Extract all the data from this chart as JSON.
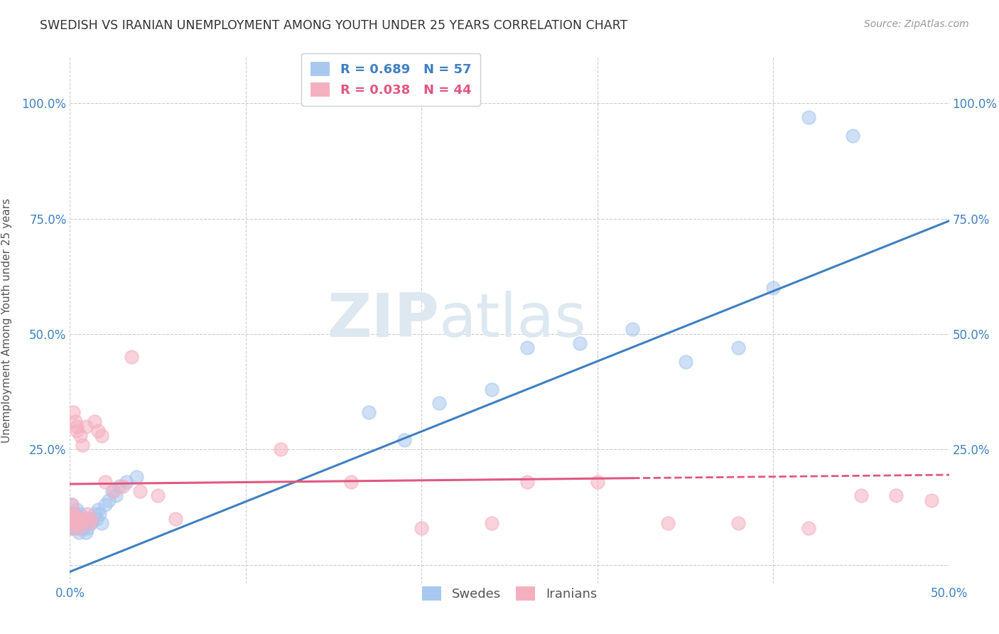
{
  "title": "SWEDISH VS IRANIAN UNEMPLOYMENT AMONG YOUTH UNDER 25 YEARS CORRELATION CHART",
  "source": "Source: ZipAtlas.com",
  "ylabel": "Unemployment Among Youth under 25 years",
  "xlim": [
    0.0,
    0.5
  ],
  "ylim": [
    -0.04,
    1.1
  ],
  "blue_R": 0.689,
  "blue_N": 57,
  "pink_R": 0.038,
  "pink_N": 44,
  "blue_label": "Swedes",
  "pink_label": "Iranians",
  "blue_color": "#a8c8f0",
  "blue_line_color": "#4080c0",
  "pink_color": "#f5b0c0",
  "pink_line_color": "#e05880",
  "background_color": "#ffffff",
  "grid_color": "#cccccc",
  "watermark_color": "#dde8f0",
  "blue_slope": 1.52,
  "blue_intercept": -0.015,
  "pink_slope": 0.04,
  "pink_intercept": 0.175,
  "swedes_x": [
    0.001,
    0.001,
    0.001,
    0.001,
    0.002,
    0.002,
    0.002,
    0.002,
    0.003,
    0.003,
    0.003,
    0.003,
    0.004,
    0.004,
    0.004,
    0.005,
    0.005,
    0.005,
    0.005,
    0.006,
    0.006,
    0.006,
    0.007,
    0.007,
    0.008,
    0.008,
    0.009,
    0.009,
    0.01,
    0.01,
    0.011,
    0.012,
    0.013,
    0.014,
    0.015,
    0.016,
    0.017,
    0.018,
    0.02,
    0.022,
    0.024,
    0.026,
    0.028,
    0.032,
    0.038,
    0.17,
    0.19,
    0.21,
    0.24,
    0.26,
    0.29,
    0.32,
    0.35,
    0.38,
    0.4,
    0.42,
    0.445
  ],
  "swedes_y": [
    0.13,
    0.11,
    0.09,
    0.08,
    0.1,
    0.09,
    0.11,
    0.08,
    0.09,
    0.1,
    0.08,
    0.11,
    0.09,
    0.1,
    0.12,
    0.08,
    0.09,
    0.07,
    0.1,
    0.08,
    0.09,
    0.11,
    0.08,
    0.09,
    0.1,
    0.08,
    0.09,
    0.07,
    0.08,
    0.09,
    0.1,
    0.09,
    0.1,
    0.11,
    0.1,
    0.12,
    0.11,
    0.09,
    0.13,
    0.14,
    0.16,
    0.15,
    0.17,
    0.18,
    0.19,
    0.33,
    0.27,
    0.35,
    0.38,
    0.47,
    0.48,
    0.51,
    0.44,
    0.47,
    0.6,
    0.97,
    0.93
  ],
  "iranians_x": [
    0.001,
    0.001,
    0.001,
    0.001,
    0.002,
    0.002,
    0.002,
    0.003,
    0.003,
    0.003,
    0.004,
    0.004,
    0.005,
    0.005,
    0.006,
    0.006,
    0.007,
    0.008,
    0.009,
    0.01,
    0.011,
    0.012,
    0.014,
    0.016,
    0.018,
    0.02,
    0.025,
    0.03,
    0.035,
    0.04,
    0.05,
    0.06,
    0.12,
    0.16,
    0.2,
    0.24,
    0.26,
    0.3,
    0.34,
    0.38,
    0.42,
    0.45,
    0.47,
    0.49
  ],
  "iranians_y": [
    0.13,
    0.11,
    0.1,
    0.08,
    0.33,
    0.11,
    0.1,
    0.09,
    0.31,
    0.1,
    0.3,
    0.29,
    0.1,
    0.08,
    0.28,
    0.09,
    0.26,
    0.1,
    0.3,
    0.11,
    0.09,
    0.1,
    0.31,
    0.29,
    0.28,
    0.18,
    0.16,
    0.17,
    0.45,
    0.16,
    0.15,
    0.1,
    0.25,
    0.18,
    0.08,
    0.09,
    0.18,
    0.18,
    0.09,
    0.09,
    0.08,
    0.15,
    0.15,
    0.14
  ]
}
